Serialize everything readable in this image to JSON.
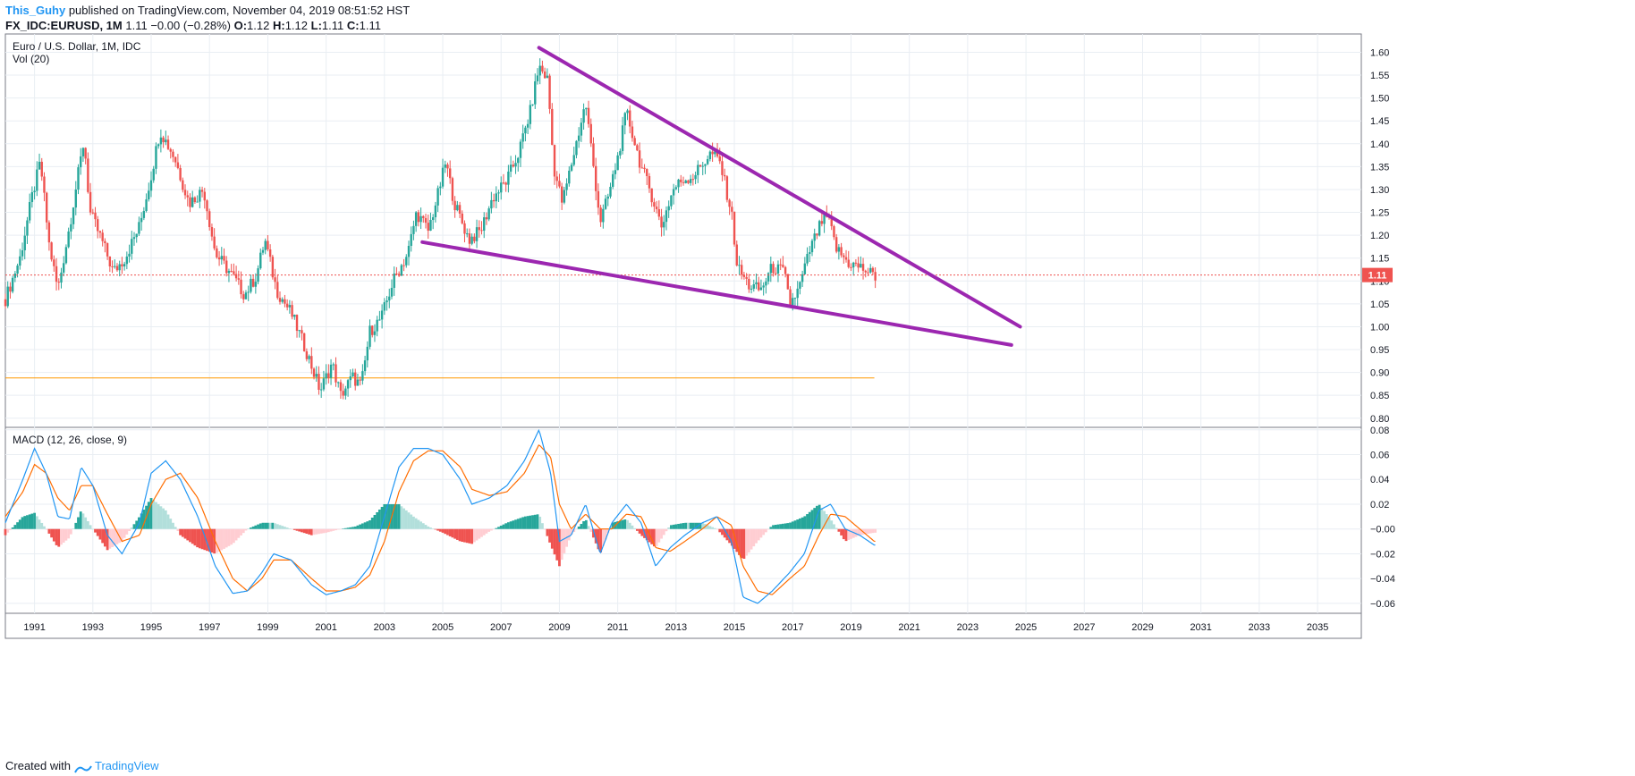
{
  "header": {
    "author": "This_Guhy",
    "published_text": "published on TradingView.com, November 04, 2019 08:51:52 HST",
    "symbol": "FX_IDC:EURUSD, 1M",
    "last": "1.11",
    "change": "−0.00 (−0.28%)",
    "ohlc_o_label": "O:",
    "ohlc_o": "1.12",
    "ohlc_h_label": "H:",
    "ohlc_h": "1.12",
    "ohlc_l_label": "L:",
    "ohlc_l": "1.11",
    "ohlc_c_label": "C:",
    "ohlc_c": "1.11"
  },
  "footer": {
    "created_with": "Created with",
    "brand": "TradingView"
  },
  "colors": {
    "up": "#26a69a",
    "down": "#ef5350",
    "up_light": "#b2dfdb",
    "down_light": "#ffcdd2",
    "macd_line": "#2196f3",
    "signal_line": "#ff6d00",
    "trendline": "#9c27b0",
    "support_line": "#ff9800",
    "price_line": "#ef5350",
    "grid": "#e9eef3"
  },
  "chart_data": [
    {
      "type": "candlestick",
      "title": "Euro / U.S. Dollar, 1M, IDC",
      "subtitle": "Vol (20)",
      "ylim": [
        0.78,
        1.64
      ],
      "y_ticks": [
        "1.60",
        "1.55",
        "1.50",
        "1.45",
        "1.40",
        "1.35",
        "1.30",
        "1.25",
        "1.20",
        "1.15",
        "1.10",
        "1.05",
        "1.00",
        "0.95",
        "0.90",
        "0.85",
        "0.80"
      ],
      "x_ticks": [
        "1991",
        "1993",
        "1995",
        "1997",
        "1999",
        "2001",
        "2003",
        "2005",
        "2007",
        "2009",
        "2011",
        "2013",
        "2015",
        "2017",
        "2019",
        "2021",
        "2023",
        "2025",
        "2027",
        "2029",
        "2031",
        "2033",
        "2035"
      ],
      "xlim": [
        1990.0,
        2036.5
      ],
      "last_price_label": "1.11",
      "last_price": 1.113,
      "horizontal_level": 0.888,
      "trendlines": [
        {
          "name": "upper-resistance",
          "from": [
            2008.3,
            1.61
          ],
          "to": [
            2024.8,
            1.0
          ]
        },
        {
          "name": "lower-support",
          "from": [
            2004.3,
            1.185
          ],
          "to": [
            2024.5,
            0.96
          ]
        }
      ],
      "price_path": [
        [
          1990.0,
          1.06
        ],
        [
          1990.5,
          1.15
        ],
        [
          1990.9,
          1.28
        ],
        [
          1991.2,
          1.36
        ],
        [
          1991.5,
          1.18
        ],
        [
          1991.8,
          1.08
        ],
        [
          1992.2,
          1.22
        ],
        [
          1992.7,
          1.41
        ],
        [
          1992.9,
          1.25
        ],
        [
          1993.3,
          1.19
        ],
        [
          1993.7,
          1.12
        ],
        [
          1994.1,
          1.15
        ],
        [
          1994.6,
          1.22
        ],
        [
          1995.0,
          1.33
        ],
        [
          1995.3,
          1.43
        ],
        [
          1995.8,
          1.37
        ],
        [
          1996.3,
          1.27
        ],
        [
          1996.8,
          1.3
        ],
        [
          1997.2,
          1.16
        ],
        [
          1997.8,
          1.11
        ],
        [
          1998.2,
          1.07
        ],
        [
          1998.6,
          1.11
        ],
        [
          1998.9,
          1.19
        ],
        [
          1999.3,
          1.08
        ],
        [
          1999.8,
          1.03
        ],
        [
          2000.3,
          0.95
        ],
        [
          2000.8,
          0.86
        ],
        [
          2001.2,
          0.92
        ],
        [
          2001.5,
          0.85
        ],
        [
          2001.9,
          0.89
        ],
        [
          2002.2,
          0.87
        ],
        [
          2002.5,
          0.99
        ],
        [
          2002.9,
          1.02
        ],
        [
          2003.3,
          1.1
        ],
        [
          2003.8,
          1.16
        ],
        [
          2004.1,
          1.25
        ],
        [
          2004.5,
          1.21
        ],
        [
          2004.8,
          1.28
        ],
        [
          2005.1,
          1.36
        ],
        [
          2005.4,
          1.27
        ],
        [
          2005.9,
          1.19
        ],
        [
          2006.3,
          1.21
        ],
        [
          2006.7,
          1.28
        ],
        [
          2007.2,
          1.32
        ],
        [
          2007.6,
          1.38
        ],
        [
          2008.0,
          1.47
        ],
        [
          2008.3,
          1.57
        ],
        [
          2008.6,
          1.54
        ],
        [
          2008.8,
          1.35
        ],
        [
          2009.1,
          1.27
        ],
        [
          2009.5,
          1.38
        ],
        [
          2009.9,
          1.49
        ],
        [
          2010.4,
          1.23
        ],
        [
          2010.7,
          1.29
        ],
        [
          2011.0,
          1.37
        ],
        [
          2011.3,
          1.47
        ],
        [
          2011.8,
          1.35
        ],
        [
          2012.1,
          1.3
        ],
        [
          2012.5,
          1.22
        ],
        [
          2012.9,
          1.3
        ],
        [
          2013.2,
          1.32
        ],
        [
          2013.6,
          1.33
        ],
        [
          2014.2,
          1.38
        ],
        [
          2014.5,
          1.36
        ],
        [
          2014.9,
          1.25
        ],
        [
          2015.1,
          1.13
        ],
        [
          2015.5,
          1.09
        ],
        [
          2015.9,
          1.08
        ],
        [
          2016.3,
          1.13
        ],
        [
          2016.7,
          1.12
        ],
        [
          2016.9,
          1.05
        ],
        [
          2017.2,
          1.08
        ],
        [
          2017.6,
          1.17
        ],
        [
          2018.0,
          1.23
        ],
        [
          2018.2,
          1.24
        ],
        [
          2018.5,
          1.17
        ],
        [
          2018.9,
          1.14
        ],
        [
          2019.3,
          1.13
        ],
        [
          2019.6,
          1.12
        ],
        [
          2019.8,
          1.11
        ]
      ]
    },
    {
      "type": "line",
      "title": "MACD (12, 26, close, 9)",
      "ylim": [
        -0.068,
        0.082
      ],
      "y_ticks": [
        "0.08",
        "0.06",
        "0.04",
        "0.02",
        "−0.00",
        "−0.02",
        "−0.04",
        "−0.06"
      ],
      "series": [
        {
          "name": "MACD",
          "values": [
            [
              1990.0,
              0.005
            ],
            [
              1990.6,
              0.04
            ],
            [
              1991.0,
              0.065
            ],
            [
              1991.4,
              0.045
            ],
            [
              1991.8,
              0.01
            ],
            [
              1992.2,
              0.008
            ],
            [
              1992.6,
              0.05
            ],
            [
              1993.0,
              0.035
            ],
            [
              1993.5,
              -0.005
            ],
            [
              1994.0,
              -0.02
            ],
            [
              1994.6,
              0.005
            ],
            [
              1995.0,
              0.045
            ],
            [
              1995.5,
              0.055
            ],
            [
              1996.0,
              0.04
            ],
            [
              1996.6,
              0.01
            ],
            [
              1997.2,
              -0.03
            ],
            [
              1997.8,
              -0.052
            ],
            [
              1998.3,
              -0.05
            ],
            [
              1998.8,
              -0.035
            ],
            [
              1999.2,
              -0.02
            ],
            [
              1999.8,
              -0.025
            ],
            [
              2000.5,
              -0.045
            ],
            [
              2001.0,
              -0.053
            ],
            [
              2001.5,
              -0.05
            ],
            [
              2002.0,
              -0.045
            ],
            [
              2002.5,
              -0.03
            ],
            [
              2003.0,
              0.01
            ],
            [
              2003.5,
              0.05
            ],
            [
              2004.0,
              0.065
            ],
            [
              2004.5,
              0.065
            ],
            [
              2005.0,
              0.06
            ],
            [
              2005.6,
              0.04
            ],
            [
              2006.0,
              0.02
            ],
            [
              2006.6,
              0.025
            ],
            [
              2007.2,
              0.035
            ],
            [
              2007.8,
              0.055
            ],
            [
              2008.3,
              0.08
            ],
            [
              2008.7,
              0.045
            ],
            [
              2009.0,
              -0.01
            ],
            [
              2009.4,
              -0.005
            ],
            [
              2009.9,
              0.02
            ],
            [
              2010.4,
              -0.02
            ],
            [
              2010.8,
              0.005
            ],
            [
              2011.3,
              0.02
            ],
            [
              2011.8,
              0.005
            ],
            [
              2012.3,
              -0.03
            ],
            [
              2012.8,
              -0.015
            ],
            [
              2013.3,
              -0.005
            ],
            [
              2013.9,
              0.005
            ],
            [
              2014.4,
              0.01
            ],
            [
              2014.9,
              -0.01
            ],
            [
              2015.3,
              -0.055
            ],
            [
              2015.8,
              -0.06
            ],
            [
              2016.3,
              -0.05
            ],
            [
              2016.9,
              -0.035
            ],
            [
              2017.4,
              -0.02
            ],
            [
              2017.9,
              0.015
            ],
            [
              2018.3,
              0.02
            ],
            [
              2018.8,
              0.0
            ],
            [
              2019.3,
              -0.005
            ],
            [
              2019.8,
              -0.013
            ]
          ]
        },
        {
          "name": "Signal",
          "values": [
            [
              1990.0,
              0.01
            ],
            [
              1990.6,
              0.03
            ],
            [
              1991.0,
              0.052
            ],
            [
              1991.4,
              0.045
            ],
            [
              1991.8,
              0.025
            ],
            [
              1992.2,
              0.015
            ],
            [
              1992.6,
              0.035
            ],
            [
              1993.0,
              0.035
            ],
            [
              1993.5,
              0.012
            ],
            [
              1994.0,
              -0.01
            ],
            [
              1994.6,
              -0.005
            ],
            [
              1995.0,
              0.02
            ],
            [
              1995.5,
              0.04
            ],
            [
              1996.0,
              0.045
            ],
            [
              1996.6,
              0.025
            ],
            [
              1997.2,
              -0.01
            ],
            [
              1997.8,
              -0.04
            ],
            [
              1998.3,
              -0.05
            ],
            [
              1998.8,
              -0.04
            ],
            [
              1999.2,
              -0.025
            ],
            [
              1999.8,
              -0.025
            ],
            [
              2000.5,
              -0.04
            ],
            [
              2001.0,
              -0.05
            ],
            [
              2001.5,
              -0.05
            ],
            [
              2002.0,
              -0.047
            ],
            [
              2002.5,
              -0.037
            ],
            [
              2003.0,
              -0.01
            ],
            [
              2003.5,
              0.03
            ],
            [
              2004.0,
              0.055
            ],
            [
              2004.5,
              0.063
            ],
            [
              2005.0,
              0.063
            ],
            [
              2005.6,
              0.05
            ],
            [
              2006.0,
              0.032
            ],
            [
              2006.6,
              0.027
            ],
            [
              2007.2,
              0.03
            ],
            [
              2007.8,
              0.045
            ],
            [
              2008.3,
              0.068
            ],
            [
              2008.7,
              0.058
            ],
            [
              2009.0,
              0.02
            ],
            [
              2009.4,
              0.0
            ],
            [
              2009.9,
              0.012
            ],
            [
              2010.4,
              0.0
            ],
            [
              2010.8,
              0.0
            ],
            [
              2011.3,
              0.012
            ],
            [
              2011.8,
              0.01
            ],
            [
              2012.3,
              -0.015
            ],
            [
              2012.8,
              -0.018
            ],
            [
              2013.3,
              -0.01
            ],
            [
              2013.9,
              0.0
            ],
            [
              2014.4,
              0.01
            ],
            [
              2014.9,
              0.003
            ],
            [
              2015.3,
              -0.03
            ],
            [
              2015.8,
              -0.05
            ],
            [
              2016.3,
              -0.053
            ],
            [
              2016.9,
              -0.04
            ],
            [
              2017.4,
              -0.03
            ],
            [
              2017.9,
              -0.005
            ],
            [
              2018.3,
              0.012
            ],
            [
              2018.8,
              0.01
            ],
            [
              2019.3,
              0.0
            ],
            [
              2019.8,
              -0.01
            ]
          ]
        }
      ]
    }
  ]
}
